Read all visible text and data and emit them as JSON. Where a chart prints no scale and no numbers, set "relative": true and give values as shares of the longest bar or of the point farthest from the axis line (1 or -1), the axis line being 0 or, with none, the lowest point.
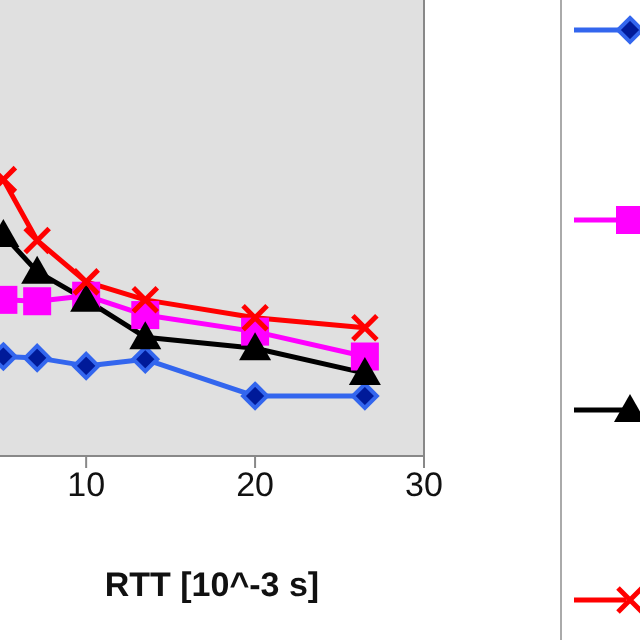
{
  "chart_data": {
    "type": "line",
    "xlabel": "RTT [10^-3 s]",
    "relative": true,
    "xlim": [
      4.9,
      30
    ],
    "xticks": [
      10,
      20,
      30
    ],
    "series": [
      {
        "color": "#3366ee",
        "marker": "diamond",
        "x": [
          5.1,
          7.1,
          10,
          13.5,
          20,
          26.5
        ],
        "values": [
          0.36,
          0.355,
          0.326,
          0.35,
          0.217,
          0.217
        ]
      },
      {
        "color": "#ff00ff",
        "marker": "square",
        "x": [
          5.1,
          7.1,
          10,
          13.5,
          20,
          26.5
        ],
        "values": [
          0.565,
          0.56,
          0.58,
          0.51,
          0.45,
          0.36
        ]
      },
      {
        "color": "#000000",
        "marker": "triangle",
        "x": [
          5.1,
          7.1,
          10,
          13.5,
          20,
          26.5
        ],
        "values": [
          0.8,
          0.667,
          0.565,
          0.43,
          0.39,
          0.3
        ]
      },
      {
        "color": "#ff0000",
        "marker": "cross",
        "x": [
          5.1,
          7.1,
          10,
          13.5,
          20,
          26.5
        ],
        "values": [
          1.0,
          0.78,
          0.63,
          0.565,
          0.5,
          0.464
        ]
      }
    ]
  }
}
